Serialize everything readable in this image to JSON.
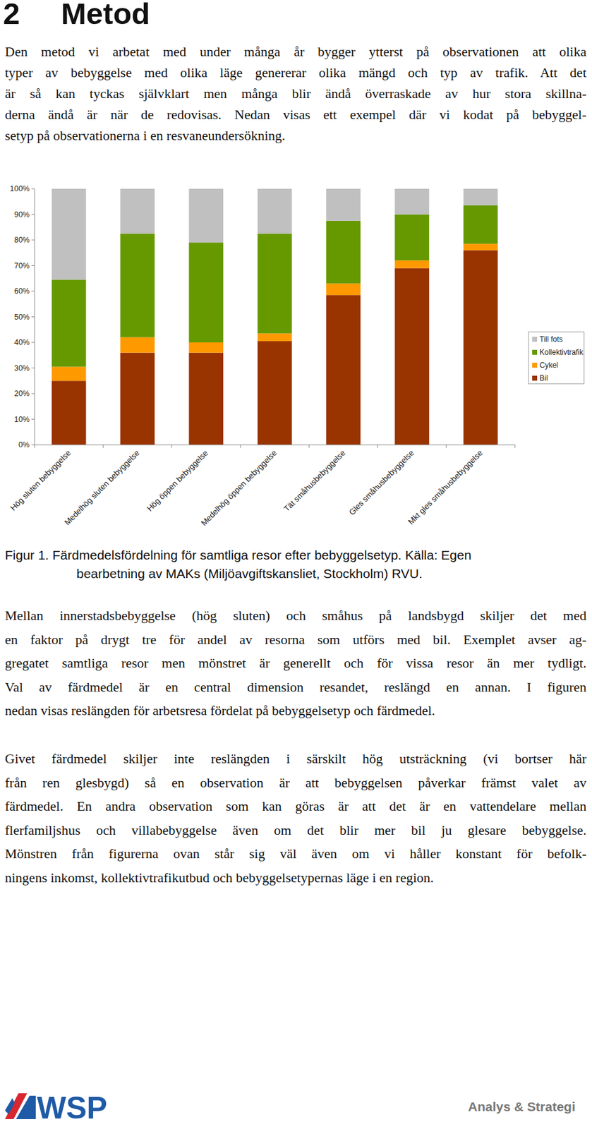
{
  "header": {
    "number": "2",
    "title": "Metod"
  },
  "intro": {
    "lines": [
      "Den metod vi arbetat med under många år bygger ytterst på observationen att olika",
      "typer av bebyggelse med olika läge genererar olika mängd och typ av trafik. Att det",
      "är så kan tyckas självklart men många blir ändå överraskade av hur stora skillna-",
      "derna ändå är när de redovisas. Nedan visas ett exempel där vi kodat på bebyggel-",
      "setyp på observationerna i en resvaneundersökning."
    ]
  },
  "chart_data": {
    "type": "bar",
    "stacked": true,
    "grid": false,
    "legend": "right",
    "categories": [
      "Hög sluten bebyggelse",
      "Medelhög sluten bebyggelse",
      "Hög öppen bebyggelse",
      "Medelhög öppen bebyggelse",
      "Tät småhusbebyggelse",
      "Gles småhusbebyggelse",
      "Mkt gles småhusbebyggelse"
    ],
    "series": [
      {
        "name": "Bil",
        "color": "#993300",
        "values": [
          25,
          36,
          36,
          40.5,
          58.5,
          69,
          76
        ]
      },
      {
        "name": "Cykel",
        "color": "#ff9900",
        "values": [
          5.5,
          6,
          4,
          3,
          4.5,
          3,
          2.5
        ]
      },
      {
        "name": "Kollektivtrafik",
        "color": "#669900",
        "values": [
          34,
          40.5,
          39,
          39,
          24.5,
          18,
          15
        ]
      },
      {
        "name": "Till fots",
        "color": "#c0c0c0",
        "values": [
          35.5,
          17.5,
          21,
          17.5,
          12.5,
          10,
          6.5
        ]
      }
    ],
    "ylim": [
      0,
      100
    ],
    "yticks": [
      {
        "value": 0,
        "label": "0%"
      },
      {
        "value": 10,
        "label": "10%"
      },
      {
        "value": 20,
        "label": "20%"
      },
      {
        "value": 30,
        "label": "30%"
      },
      {
        "value": 40,
        "label": "40%"
      },
      {
        "value": 50,
        "label": "50%"
      },
      {
        "value": 60,
        "label": "60%"
      },
      {
        "value": 70,
        "label": "70%"
      },
      {
        "value": 80,
        "label": "80%"
      },
      {
        "value": 90,
        "label": "90%"
      },
      {
        "value": 100,
        "label": "100%"
      }
    ]
  },
  "caption": {
    "lines": [
      "Figur 1. Färdmedelsfördelning för samtliga resor efter bebyggelsetyp. Källa: Egen",
      "bearbetning av MAKs (Miljöavgiftskansliet, Stockholm) RVU."
    ]
  },
  "body": [
    {
      "lines": [
        "Mellan innerstadsbebyggelse (hög sluten) och småhus på landsbygd skiljer det med",
        "en faktor på drygt tre för andel av resorna som utförs med bil. Exemplet avser ag-",
        "gregatet samtliga resor men mönstret är generellt och för vissa resor än mer tydligt.",
        "Val av färdmedel är en central dimension resandet, reslängd en annan. I figuren",
        "nedan visas reslängden för arbetsresa fördelat på bebyggelsetyp och färdmedel."
      ]
    },
    {
      "lines": [
        "Givet färdmedel skiljer inte reslängden i särskilt hög utsträckning (vi bortser här",
        "från ren glesbygd) så en observation är att bebyggelsen påverkar främst valet av",
        "färdmedel. En andra observation som kan göras är att det är en vattendelare mellan",
        "flerfamiljshus och villabebyggelse även om det blir mer bil ju glesare bebyggelse.",
        "Mönstren från figurerna ovan står sig väl även om vi håller konstant för befolk-",
        "ningens inkomst, kollektivtrafikutbud och bebyggelsetypernas läge i en region."
      ]
    }
  ],
  "footer": {
    "logo_text": "WSP",
    "right_text": "Analys & Strategi"
  }
}
